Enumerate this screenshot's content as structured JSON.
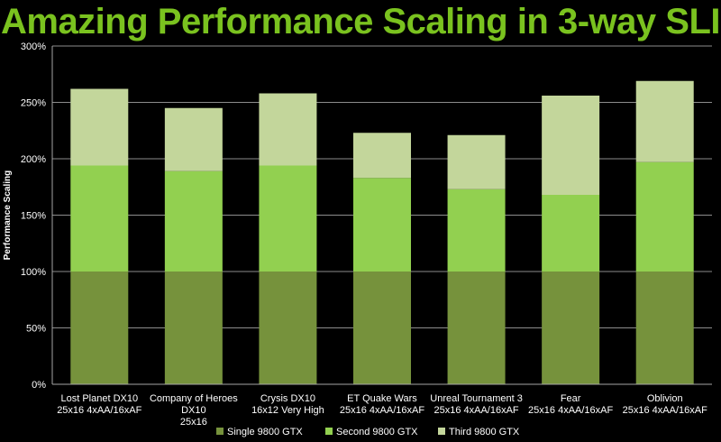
{
  "slide": {
    "title": "Amazing Performance Scaling in 3-way SLI",
    "title_color": "#7AC21F"
  },
  "chart_data": {
    "type": "bar",
    "stacked": true,
    "ylabel": "Performance Scaling",
    "ylim": [
      0,
      300
    ],
    "yticks": [
      "0%",
      "50%",
      "100%",
      "150%",
      "200%",
      "250%",
      "300%"
    ],
    "ytick_values": [
      0,
      50,
      100,
      150,
      200,
      250,
      300
    ],
    "grid": true,
    "legend_position": "bottom",
    "categories": [
      [
        "Lost Planet DX10",
        "25x16 4xAA/16xAF"
      ],
      [
        "Company of Heroes",
        "DX10",
        "25x16"
      ],
      [
        "Crysis DX10",
        "16x12 Very High"
      ],
      [
        "ET Quake Wars",
        "25x16 4xAA/16xAF"
      ],
      [
        "Unreal Tournament 3",
        "25x16 4xAA/16xAF"
      ],
      [
        "Fear",
        "25x16 4xAA/16xAF"
      ],
      [
        "Oblivion",
        "25x16 4xAA/16xAF"
      ]
    ],
    "totals": [
      262,
      245,
      258,
      223,
      221,
      256,
      269
    ],
    "series": [
      {
        "name": "Single 9800 GTX",
        "color": "#76923C",
        "values": [
          100,
          100,
          100,
          100,
          100,
          100,
          100
        ]
      },
      {
        "name": "Second 9800 GTX",
        "color": "#92D050",
        "values": [
          94,
          89,
          94,
          83,
          73,
          68,
          97
        ]
      },
      {
        "name": "Third 9800 GTX",
        "color": "#C3D69B",
        "values": [
          68,
          56,
          64,
          40,
          48,
          88,
          72
        ]
      }
    ]
  }
}
